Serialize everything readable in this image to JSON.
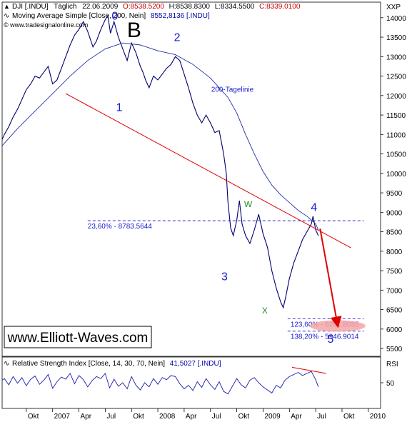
{
  "header": {
    "symbol": "DJI [.INDU]",
    "interval": "Täglich",
    "date": "22.06.2009",
    "open": "O:8538.5200",
    "high": "H:8538.8300",
    "low": "L:8334.5500",
    "close": "C:8339.0100",
    "ma_title": "Moving Average Simple [Close, 200, Nein]",
    "ma_value": "8552,8136 [.INDU]",
    "source": "© www.tradesignalonline.com",
    "right_label": "XXP"
  },
  "rsi_header": {
    "title": "Relative Strength Index [Close, 14, 30, 70, Nein]",
    "value": "41,5027 [.INDU]",
    "right_label": "RSI"
  },
  "watermark": "www.Elliott-Waves.com",
  "colors": {
    "price": "#00006e",
    "ma": "#1f2fa8",
    "trendline": "#e00000",
    "fib": "#2a2acc",
    "target_zone": "#f4a6a6",
    "rsi": "#1a1aaa"
  },
  "chart_data": {
    "type": "line",
    "main": {
      "x_unit": "months since Jul 2006",
      "ylim": [
        5300,
        14400
      ],
      "y_ticks": [
        5500,
        6000,
        6500,
        7000,
        7500,
        8000,
        8500,
        9000,
        9500,
        10000,
        10500,
        11000,
        11500,
        12000,
        12500,
        13000,
        13500,
        14000
      ],
      "y_tick_labels": [
        "5500",
        "6000",
        "6500",
        "7000",
        "7500",
        "8000",
        "8500",
        "9000",
        "9500",
        "10000",
        "10500",
        "11000",
        "11500",
        "12000",
        "12500",
        "13000",
        "13500",
        "14000"
      ],
      "series": [
        {
          "name": "DJI",
          "points": [
            [
              0.0,
              10750
            ],
            [
              0.5,
              11000
            ],
            [
              1.0,
              11200
            ],
            [
              1.5,
              11450
            ],
            [
              2.0,
              11650
            ],
            [
              2.5,
              11900
            ],
            [
              3.0,
              12150
            ],
            [
              3.5,
              12300
            ],
            [
              4.0,
              12500
            ],
            [
              4.5,
              12450
            ],
            [
              5.0,
              12600
            ],
            [
              5.5,
              12750
            ],
            [
              6.0,
              12300
            ],
            [
              6.5,
              12400
            ],
            [
              7.0,
              12700
            ],
            [
              7.5,
              13000
            ],
            [
              8.0,
              13300
            ],
            [
              8.5,
              13550
            ],
            [
              9.0,
              13700
            ],
            [
              9.5,
              13900
            ],
            [
              10.0,
              13650
            ],
            [
              10.3,
              13450
            ],
            [
              10.6,
              13250
            ],
            [
              11.0,
              13400
            ],
            [
              11.5,
              13700
            ],
            [
              12.0,
              13950
            ],
            [
              12.3,
              14050
            ],
            [
              12.6,
              13600
            ],
            [
              13.0,
              13900
            ],
            [
              13.5,
              13500
            ],
            [
              14.0,
              13200
            ],
            [
              14.5,
              12900
            ],
            [
              15.0,
              13350
            ],
            [
              15.5,
              13100
            ],
            [
              16.0,
              12750
            ],
            [
              16.3,
              12600
            ],
            [
              16.6,
              12400
            ],
            [
              17.0,
              12200
            ],
            [
              17.5,
              12500
            ],
            [
              18.0,
              12400
            ],
            [
              18.5,
              12550
            ],
            [
              19.0,
              12700
            ],
            [
              19.5,
              12800
            ],
            [
              20.0,
              13000
            ],
            [
              20.5,
              12900
            ],
            [
              21.0,
              12550
            ],
            [
              21.5,
              12200
            ],
            [
              22.0,
              11800
            ],
            [
              22.5,
              11500
            ],
            [
              23.0,
              11300
            ],
            [
              23.5,
              11500
            ],
            [
              24.0,
              11300
            ],
            [
              24.5,
              11050
            ],
            [
              25.0,
              11100
            ],
            [
              25.5,
              10500
            ],
            [
              25.8,
              10000
            ],
            [
              26.0,
              9250
            ],
            [
              26.3,
              8600
            ],
            [
              26.6,
              8400
            ],
            [
              27.0,
              8800
            ],
            [
              27.3,
              9300
            ],
            [
              27.6,
              8700
            ],
            [
              28.0,
              8400
            ],
            [
              28.5,
              8200
            ],
            [
              29.0,
              8550
            ],
            [
              29.5,
              8950
            ],
            [
              30.0,
              8450
            ],
            [
              30.5,
              8100
            ],
            [
              31.0,
              7500
            ],
            [
              31.5,
              7050
            ],
            [
              32.0,
              6700
            ],
            [
              32.3,
              6550
            ],
            [
              32.6,
              6850
            ],
            [
              33.0,
              7300
            ],
            [
              33.5,
              7700
            ],
            [
              34.0,
              8000
            ],
            [
              34.5,
              8300
            ],
            [
              35.0,
              8500
            ],
            [
              35.5,
              8700
            ],
            [
              35.7,
              8900
            ],
            [
              36.0,
              8550
            ],
            [
              36.3,
              8400
            ]
          ]
        },
        {
          "name": "Moving Average Simple",
          "points": [
            [
              0.0,
              10650
            ],
            [
              2.0,
              11150
            ],
            [
              4.0,
              11600
            ],
            [
              6.0,
              12050
            ],
            [
              8.0,
              12500
            ],
            [
              10.0,
              12900
            ],
            [
              12.0,
              13200
            ],
            [
              14.0,
              13350
            ],
            [
              16.0,
              13300
            ],
            [
              18.0,
              13150
            ],
            [
              20.0,
              13050
            ],
            [
              22.0,
              12800
            ],
            [
              24.0,
              12450
            ],
            [
              26.0,
              11950
            ],
            [
              27.0,
              11550
            ],
            [
              28.0,
              11000
            ],
            [
              29.0,
              10500
            ],
            [
              30.0,
              10050
            ],
            [
              31.0,
              9700
            ],
            [
              32.0,
              9450
            ],
            [
              33.0,
              9250
            ],
            [
              34.0,
              9050
            ],
            [
              35.0,
              8900
            ],
            [
              36.0,
              8700
            ],
            [
              36.3,
              8550
            ]
          ]
        }
      ],
      "trendline": [
        [
          7.5,
          12050
        ],
        [
          40.0,
          8090
        ]
      ],
      "forecast_arrow": [
        [
          36.5,
          8580
        ],
        [
          38.5,
          6100
        ]
      ],
      "fib_levels": [
        {
          "label": "23,60% - 8783.5644",
          "value": 8783.5644,
          "x_from": 10.0,
          "x_to": 41.5
        },
        {
          "label": "123,60% - 6261.8035",
          "value": 6261.8035,
          "x_from": 32.8,
          "x_to": 41.5
        },
        {
          "label": "138,20% - 5946.9014",
          "value": 5946.9014,
          "x_from": 32.8,
          "x_to": 41.5
        }
      ],
      "target_zone": {
        "x": 38.5,
        "y": 6080
      },
      "wave_labels": [
        {
          "text": "0",
          "x": 13.1,
          "y": 13950,
          "color": "blue"
        },
        {
          "text": "B",
          "x": 15.3,
          "y": 13500,
          "color": "black"
        },
        {
          "text": "1",
          "x": 13.6,
          "y": 11600,
          "color": "blue"
        },
        {
          "text": "2",
          "x": 20.2,
          "y": 13400,
          "color": "blue"
        },
        {
          "text": "200-Tagelinie",
          "x": 26.5,
          "y": 12100,
          "color": "blue"
        },
        {
          "text": "W",
          "x": 28.3,
          "y": 9130,
          "color": "green"
        },
        {
          "text": "3",
          "x": 25.6,
          "y": 7250,
          "color": "blue"
        },
        {
          "text": "X",
          "x": 30.2,
          "y": 6400,
          "color": "green"
        },
        {
          "text": "4",
          "x": 35.8,
          "y": 9030,
          "color": "blue"
        },
        {
          "text": "5",
          "x": 37.7,
          "y": 5650,
          "color": "blue"
        }
      ]
    },
    "rsi": {
      "ylim": [
        0,
        100
      ],
      "y_ticks": [
        50
      ],
      "y_tick_labels": [
        "50"
      ],
      "series": [
        {
          "name": "Relative Strength Index",
          "points": [
            [
              0.0,
              52
            ],
            [
              0.5,
              58
            ],
            [
              1.0,
              46
            ],
            [
              1.5,
              62
            ],
            [
              2.0,
              49
            ],
            [
              2.5,
              60
            ],
            [
              3.0,
              44
            ],
            [
              3.5,
              57
            ],
            [
              4.0,
              63
            ],
            [
              4.5,
              47
            ],
            [
              5.0,
              55
            ],
            [
              5.5,
              66
            ],
            [
              6.0,
              39
            ],
            [
              6.5,
              52
            ],
            [
              7.0,
              61
            ],
            [
              7.5,
              57
            ],
            [
              8.0,
              68
            ],
            [
              8.5,
              48
            ],
            [
              9.0,
              64
            ],
            [
              9.5,
              56
            ],
            [
              10.0,
              42
            ],
            [
              10.5,
              54
            ],
            [
              11.0,
              62
            ],
            [
              11.5,
              58
            ],
            [
              12.0,
              68
            ],
            [
              12.5,
              40
            ],
            [
              13.0,
              57
            ],
            [
              13.5,
              43
            ],
            [
              14.0,
              50
            ],
            [
              14.5,
              38
            ],
            [
              15.0,
              62
            ],
            [
              15.5,
              45
            ],
            [
              16.0,
              36
            ],
            [
              16.5,
              50
            ],
            [
              17.0,
              42
            ],
            [
              17.5,
              58
            ],
            [
              18.0,
              47
            ],
            [
              18.5,
              60
            ],
            [
              19.0,
              56
            ],
            [
              19.5,
              64
            ],
            [
              20.0,
              62
            ],
            [
              20.5,
              48
            ],
            [
              21.0,
              38
            ],
            [
              21.5,
              45
            ],
            [
              22.0,
              35
            ],
            [
              22.5,
              52
            ],
            [
              23.0,
              41
            ],
            [
              23.5,
              58
            ],
            [
              24.0,
              46
            ],
            [
              24.5,
              37
            ],
            [
              25.0,
              52
            ],
            [
              25.5,
              33
            ],
            [
              26.0,
              28
            ],
            [
              26.5,
              43
            ],
            [
              27.0,
              58
            ],
            [
              27.5,
              46
            ],
            [
              28.0,
              40
            ],
            [
              28.5,
              55
            ],
            [
              29.0,
              60
            ],
            [
              29.5,
              50
            ],
            [
              30.0,
              42
            ],
            [
              30.5,
              36
            ],
            [
              31.0,
              30
            ],
            [
              31.5,
              45
            ],
            [
              32.0,
              40
            ],
            [
              32.5,
              55
            ],
            [
              33.0,
              62
            ],
            [
              33.5,
              66
            ],
            [
              34.0,
              70
            ],
            [
              34.5,
              64
            ],
            [
              35.0,
              68
            ],
            [
              35.5,
              72
            ],
            [
              36.0,
              56
            ],
            [
              36.3,
              42
            ]
          ]
        }
      ],
      "divergence_line": [
        [
          33.3,
          80
        ],
        [
          37.2,
          68
        ]
      ]
    },
    "x_ticks": [
      3,
      6,
      9,
      12,
      15,
      18,
      21,
      24,
      27,
      30,
      33,
      36,
      39,
      42
    ],
    "x_tick_labels": [
      "Okt",
      "2007",
      "Apr",
      "Jul",
      "Okt",
      "2008",
      "Apr",
      "Jul",
      "Okt",
      "2009",
      "Apr",
      "Jul",
      "Okt",
      "2010"
    ]
  }
}
